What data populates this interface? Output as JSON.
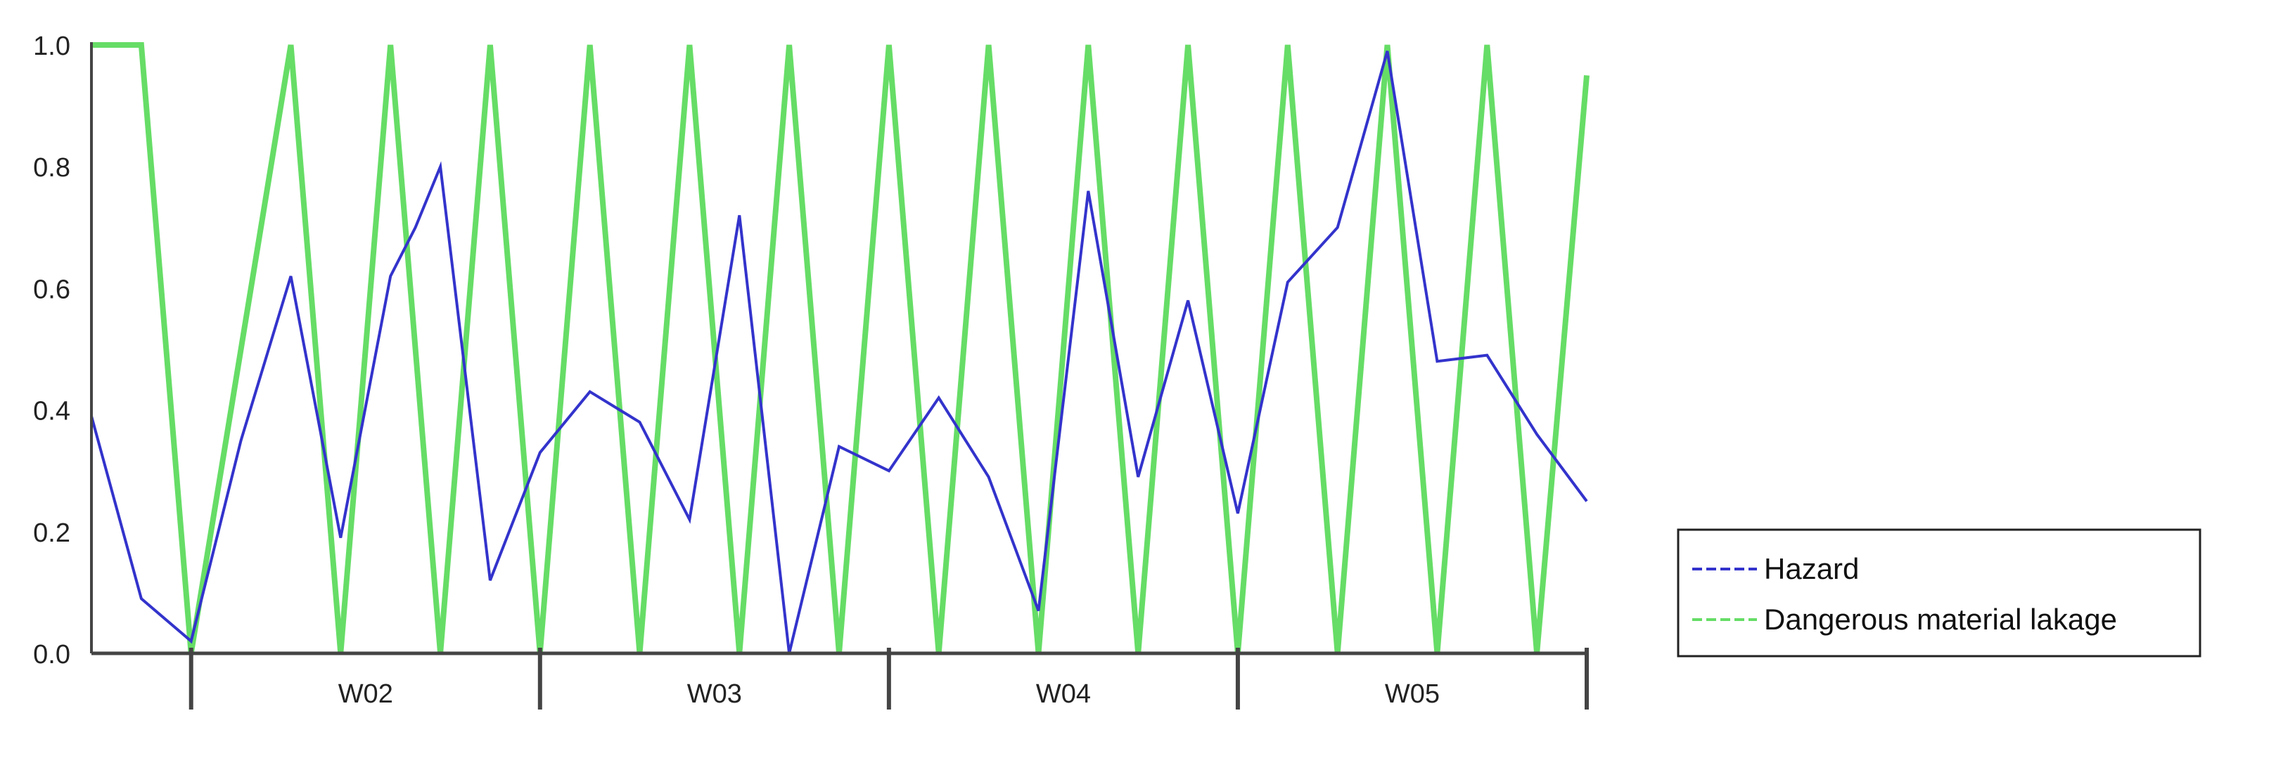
{
  "chart_data": {
    "type": "line",
    "yticks": [
      "0.0",
      "0.2",
      "0.4",
      "0.6",
      "0.8",
      "1.0"
    ],
    "ylim": [
      0,
      1
    ],
    "xlim": [
      0,
      30
    ],
    "categories": [
      "W02",
      "W03",
      "W04",
      "W05"
    ],
    "category_boundaries": [
      2,
      9,
      16,
      23,
      30
    ],
    "grid": false,
    "legend_position": "right",
    "series": [
      {
        "name": "Hazard",
        "color": "#3333cc",
        "x": [
          0,
          1,
          2,
          3,
          4,
          5,
          6,
          6.5,
          7,
          8,
          9,
          10,
          11,
          12,
          13,
          14,
          15,
          16,
          17,
          18,
          19,
          20,
          21,
          22,
          23,
          24,
          25,
          26,
          27,
          28,
          29,
          30
        ],
        "y": [
          0.39,
          0.09,
          0.02,
          0.35,
          0.62,
          0.19,
          0.62,
          0.7,
          0.8,
          0.12,
          0.33,
          0.43,
          0.38,
          0.22,
          0.72,
          0.0,
          0.34,
          0.3,
          0.42,
          0.29,
          0.07,
          0.76,
          0.29,
          0.58,
          0.23,
          0.61,
          0.7,
          0.99,
          0.48,
          0.49,
          0.36,
          0.25
        ]
      },
      {
        "name": "Dangerous material lakage",
        "color": "#66dd66",
        "x": [
          0,
          1,
          2,
          4,
          5,
          6,
          7,
          8,
          9,
          10,
          11,
          12,
          13,
          14,
          15,
          16,
          17,
          18,
          19,
          20,
          21,
          22,
          23,
          24,
          25,
          26,
          27,
          28,
          29,
          30
        ],
        "y": [
          1.0,
          1.0,
          0.0,
          1.0,
          0.0,
          1.0,
          0.0,
          1.0,
          0.0,
          1.0,
          0.0,
          1.0,
          0.0,
          1.0,
          0.0,
          1.0,
          0.0,
          1.0,
          0.0,
          1.0,
          0.0,
          1.0,
          0.0,
          1.0,
          0.0,
          1.0,
          0.0,
          1.0,
          0.0,
          0.95
        ]
      }
    ]
  }
}
